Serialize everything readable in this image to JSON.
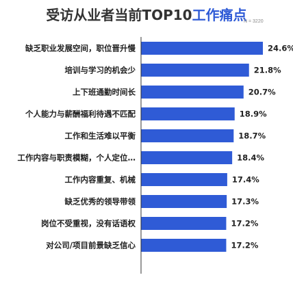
{
  "title_main": "受访从业者当前TOP10",
  "title_accent": "工作痛点",
  "sample_note": "N = 3220",
  "colors": {
    "bar": "#2f5bd6",
    "axis": "#333333",
    "title_accent": "#2f5bd6"
  },
  "chart_data": {
    "type": "bar",
    "orientation": "horizontal",
    "title": "受访从业者当前TOP10工作痛点",
    "categories": [
      "缺乏职业发展空间，职位晋升慢",
      "培训与学习的机会少",
      "上下班通勤时间长",
      "个人能力与薪酬福利待遇不匹配",
      "工作和生活难以平衡",
      "工作内容与职责模糊，个人定位…",
      "工作内容重复、机械",
      "缺乏优秀的领导带领",
      "岗位不受重视，没有话语权",
      "对公司/项目前景缺乏信心"
    ],
    "values": [
      24.6,
      21.8,
      20.7,
      18.9,
      18.7,
      18.4,
      17.4,
      17.3,
      17.2,
      17.2
    ],
    "labels": [
      "24.6%",
      "21.8%",
      "20.7%",
      "18.9%",
      "18.7%",
      "18.4%",
      "17.4%",
      "17.3%",
      "17.2%",
      "17.2%"
    ],
    "xlim": [
      0,
      24.6
    ],
    "grid": false
  }
}
